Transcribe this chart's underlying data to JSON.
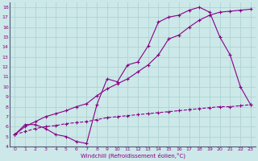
{
  "xlabel": "Windchill (Refroidissement éolien,°C)",
  "bg_color": "#cce8e8",
  "grid_color": "#aacfcf",
  "line_color": "#880088",
  "xlim": [
    -0.5,
    23.5
  ],
  "ylim": [
    4,
    18.5
  ],
  "xticks": [
    0,
    1,
    2,
    3,
    4,
    5,
    6,
    7,
    8,
    9,
    10,
    11,
    12,
    13,
    14,
    15,
    16,
    17,
    18,
    19,
    20,
    21,
    22,
    23
  ],
  "yticks": [
    4,
    5,
    6,
    7,
    8,
    9,
    10,
    11,
    12,
    13,
    14,
    15,
    16,
    17,
    18
  ],
  "curve1_x": [
    0,
    1,
    2,
    3,
    4,
    5,
    6,
    7,
    8,
    9,
    10,
    11,
    12,
    13,
    14,
    15,
    16,
    17,
    18,
    19,
    20,
    21,
    22,
    23
  ],
  "curve1_y": [
    5.2,
    6.2,
    6.2,
    5.8,
    5.2,
    5.0,
    4.5,
    4.3,
    8.2,
    10.8,
    10.5,
    12.2,
    12.5,
    14.1,
    16.5,
    17.0,
    17.2,
    17.7,
    18.0,
    17.5,
    15.0,
    13.2,
    10.0,
    8.2
  ],
  "curve2_x": [
    0,
    1,
    2,
    3,
    4,
    5,
    6,
    7,
    8,
    9,
    10,
    11,
    12,
    13,
    14,
    15,
    16,
    17,
    18,
    19,
    20,
    21,
    22,
    23
  ],
  "curve2_y": [
    5.2,
    6.0,
    6.5,
    7.0,
    7.3,
    7.6,
    8.0,
    8.3,
    9.1,
    9.8,
    10.3,
    10.8,
    11.5,
    12.2,
    13.2,
    14.8,
    15.2,
    16.0,
    16.7,
    17.2,
    17.5,
    17.6,
    17.7,
    17.8
  ],
  "curve3_x": [
    0,
    1,
    2,
    3,
    4,
    5,
    6,
    7,
    8,
    9,
    10,
    11,
    12,
    13,
    14,
    15,
    16,
    17,
    18,
    19,
    20,
    21,
    22,
    23
  ],
  "curve3_y": [
    5.2,
    5.5,
    5.8,
    6.0,
    6.1,
    6.3,
    6.4,
    6.5,
    6.7,
    6.9,
    7.0,
    7.1,
    7.2,
    7.3,
    7.4,
    7.5,
    7.6,
    7.7,
    7.8,
    7.9,
    8.0,
    8.0,
    8.1,
    8.2
  ]
}
